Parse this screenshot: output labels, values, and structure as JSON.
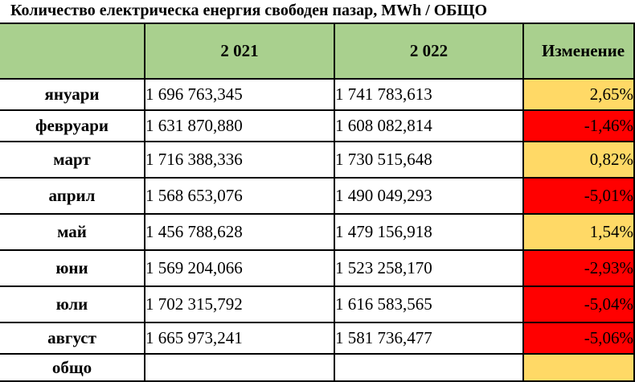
{
  "title": "Количество електрическа енергия свободен пазар, MWh / ОБЩО",
  "columns": [
    "",
    "2 021",
    "2 022",
    "Изменение"
  ],
  "rows": [
    {
      "month": "януари",
      "y2021": "1 696 763,345",
      "y2022": "1 741 783,613",
      "change": "2,65%",
      "trend": "pos"
    },
    {
      "month": "февруари",
      "y2021": "1 631 870,880",
      "y2022": "1 608 082,814",
      "change": "-1,46%",
      "trend": "neg"
    },
    {
      "month": "март",
      "y2021": "1 716 388,336",
      "y2022": "1 730 515,648",
      "change": "0,82%",
      "trend": "pos"
    },
    {
      "month": "април",
      "y2021": "1 568 653,076",
      "y2022": "1 490 049,293",
      "change": "-5,01%",
      "trend": "neg"
    },
    {
      "month": "май",
      "y2021": "1 456 788,628",
      "y2022": "1 479 156,918",
      "change": "1,54%",
      "trend": "pos"
    },
    {
      "month": "юни",
      "y2021": "1 569 204,066",
      "y2022": "1 523 258,170",
      "change": "-2,93%",
      "trend": "neg"
    },
    {
      "month": "юли",
      "y2021": "1 702 315,792",
      "y2022": "1 616 583,565",
      "change": "-5,04%",
      "trend": "neg"
    },
    {
      "month": "август",
      "y2021": "1 665 973,241",
      "y2022": "1 581 736,477",
      "change": "-5,06%",
      "trend": "neg"
    }
  ],
  "total": {
    "month": "общо",
    "y2021": "",
    "y2022": "",
    "change": ""
  },
  "colors": {
    "header": "#a9d08e",
    "positive": "#ffd966",
    "negative": "#ff0000"
  }
}
